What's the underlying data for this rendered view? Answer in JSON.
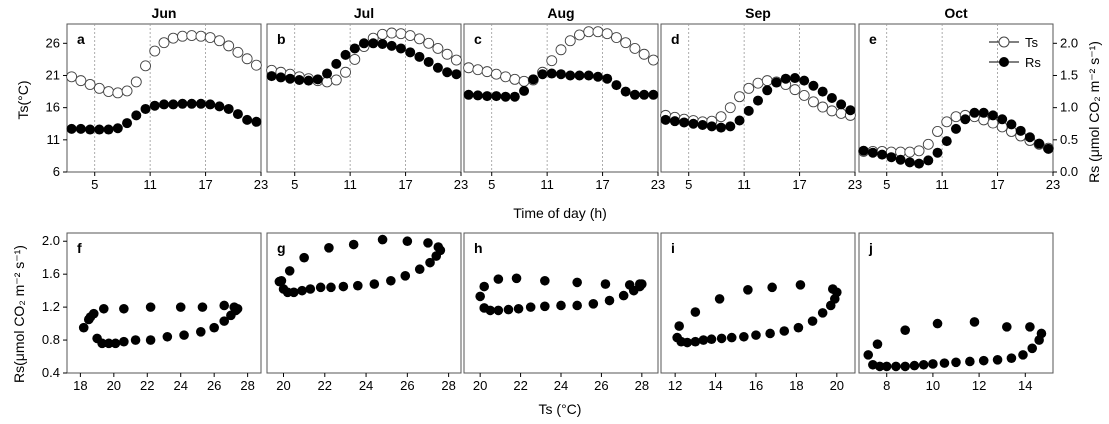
{
  "figure": {
    "xlabel_top": "Time of day (h)",
    "xlabel_bottom": "Ts (°C)",
    "ylabel_top_left": "Ts(°C)",
    "ylabel_top_right": "Rs (μmol CO₂ m⁻² s⁻¹)",
    "ylabel_bottom_left": "Rs(μmol CO₂ m⁻² s⁻¹)",
    "legend": {
      "ts": "Ts",
      "rs": "Rs",
      "placement": "top-right of panel e"
    }
  },
  "chart_data": [
    {
      "type": "scatter",
      "panel": "a",
      "title": "Jun",
      "x_ticks": [
        5,
        11,
        17,
        23
      ],
      "xlim": [
        2,
        23
      ],
      "ts_ticks": [
        6,
        11,
        16,
        21,
        26
      ],
      "ts_lim": [
        6,
        29
      ],
      "rs_lim": [
        0,
        2.3
      ],
      "vlines": [
        5,
        11,
        17
      ],
      "series": [
        {
          "name": "Ts",
          "marker": "open-circle",
          "x": [
            2.5,
            3.5,
            4.5,
            5.5,
            6.5,
            7.5,
            8.5,
            9.5,
            10.5,
            11.5,
            12.5,
            13.5,
            14.5,
            15.5,
            16.5,
            17.5,
            18.5,
            19.5,
            20.5,
            21.5,
            22.5
          ],
          "values": [
            20.8,
            20.2,
            19.6,
            19.0,
            18.5,
            18.3,
            18.6,
            20.0,
            22.5,
            24.8,
            26.1,
            26.8,
            27.1,
            27.2,
            27.1,
            26.9,
            26.4,
            25.6,
            24.6,
            23.6,
            22.6
          ]
        },
        {
          "name": "Rs",
          "marker": "filled-circle",
          "x": [
            2.5,
            3.5,
            4.5,
            5.5,
            6.5,
            7.5,
            8.5,
            9.5,
            10.5,
            11.5,
            12.5,
            13.5,
            14.5,
            15.5,
            16.5,
            17.5,
            18.5,
            19.5,
            20.5,
            21.5,
            22.5
          ],
          "values": [
            0.67,
            0.67,
            0.66,
            0.66,
            0.66,
            0.68,
            0.76,
            0.88,
            0.98,
            1.03,
            1.05,
            1.05,
            1.06,
            1.06,
            1.06,
            1.05,
            1.02,
            0.98,
            0.9,
            0.81,
            0.78
          ]
        }
      ]
    },
    {
      "type": "scatter",
      "panel": "b",
      "title": "Jul",
      "x_ticks": [
        5,
        11,
        17,
        23
      ],
      "xlim": [
        2,
        23
      ],
      "ts_lim": [
        6,
        29
      ],
      "rs_lim": [
        0,
        2.3
      ],
      "vlines": [
        5,
        11,
        17
      ],
      "series": [
        {
          "name": "Ts",
          "marker": "open-circle",
          "x": [
            2.5,
            3.5,
            4.5,
            5.5,
            6.5,
            7.5,
            8.5,
            9.5,
            10.5,
            11.5,
            12.5,
            13.5,
            14.5,
            15.5,
            16.5,
            17.5,
            18.5,
            19.5,
            20.5,
            21.5,
            22.5
          ],
          "values": [
            21.8,
            21.5,
            21.2,
            20.8,
            20.5,
            20.2,
            20.0,
            20.3,
            21.5,
            23.5,
            25.5,
            26.8,
            27.4,
            27.6,
            27.5,
            27.2,
            26.7,
            26.0,
            25.2,
            24.3,
            23.4
          ]
        },
        {
          "name": "Rs",
          "marker": "filled-circle",
          "x": [
            2.5,
            3.5,
            4.5,
            5.5,
            6.5,
            7.5,
            8.5,
            9.5,
            10.5,
            11.5,
            12.5,
            13.5,
            14.5,
            15.5,
            16.5,
            17.5,
            18.5,
            19.5,
            20.5,
            21.5,
            22.5
          ],
          "values": [
            1.49,
            1.47,
            1.45,
            1.43,
            1.42,
            1.44,
            1.53,
            1.68,
            1.82,
            1.92,
            2.0,
            2.0,
            1.99,
            1.96,
            1.92,
            1.86,
            1.79,
            1.71,
            1.62,
            1.55,
            1.52
          ]
        }
      ]
    },
    {
      "type": "scatter",
      "panel": "c",
      "title": "Aug",
      "x_ticks": [
        5,
        11,
        17,
        23
      ],
      "xlim": [
        2,
        23
      ],
      "ts_lim": [
        6,
        29
      ],
      "rs_lim": [
        0,
        2.3
      ],
      "vlines": [
        5,
        11,
        17
      ],
      "series": [
        {
          "name": "Ts",
          "marker": "open-circle",
          "x": [
            2.5,
            3.5,
            4.5,
            5.5,
            6.5,
            7.5,
            8.5,
            9.5,
            10.5,
            11.5,
            12.5,
            13.5,
            14.5,
            15.5,
            16.5,
            17.5,
            18.5,
            19.5,
            20.5,
            21.5,
            22.5
          ],
          "values": [
            22.2,
            21.9,
            21.6,
            21.2,
            20.8,
            20.4,
            20.1,
            20.3,
            21.5,
            23.3,
            25.0,
            26.4,
            27.3,
            27.8,
            27.8,
            27.5,
            26.9,
            26.1,
            25.2,
            24.3,
            23.4
          ]
        },
        {
          "name": "Rs",
          "marker": "filled-circle",
          "x": [
            2.5,
            3.5,
            4.5,
            5.5,
            6.5,
            7.5,
            8.5,
            9.5,
            10.5,
            11.5,
            12.5,
            13.5,
            14.5,
            15.5,
            16.5,
            17.5,
            18.5,
            19.5,
            20.5,
            21.5,
            22.5
          ],
          "values": [
            1.2,
            1.19,
            1.18,
            1.18,
            1.17,
            1.17,
            1.26,
            1.44,
            1.52,
            1.53,
            1.52,
            1.5,
            1.5,
            1.5,
            1.48,
            1.45,
            1.35,
            1.25,
            1.2,
            1.2,
            1.2
          ]
        }
      ]
    },
    {
      "type": "scatter",
      "panel": "d",
      "title": "Sep",
      "x_ticks": [
        5,
        11,
        17,
        23
      ],
      "xlim": [
        2,
        23
      ],
      "ts_lim": [
        6,
        29
      ],
      "rs_lim": [
        0,
        2.3
      ],
      "vlines": [
        5,
        11,
        17
      ],
      "series": [
        {
          "name": "Ts",
          "marker": "open-circle",
          "x": [
            2.5,
            3.5,
            4.5,
            5.5,
            6.5,
            7.5,
            8.5,
            9.5,
            10.5,
            11.5,
            12.5,
            13.5,
            14.5,
            15.5,
            16.5,
            17.5,
            18.5,
            19.5,
            20.5,
            21.5,
            22.5
          ],
          "values": [
            14.8,
            14.5,
            14.2,
            14.0,
            13.8,
            13.9,
            14.6,
            16.0,
            17.7,
            19.0,
            19.8,
            20.2,
            20.0,
            19.6,
            18.8,
            17.9,
            16.9,
            16.1,
            15.5,
            15.1,
            14.8
          ]
        },
        {
          "name": "Rs",
          "marker": "filled-circle",
          "x": [
            2.5,
            3.5,
            4.5,
            5.5,
            6.5,
            7.5,
            8.5,
            9.5,
            10.5,
            11.5,
            12.5,
            13.5,
            14.5,
            15.5,
            16.5,
            17.5,
            18.5,
            19.5,
            20.5,
            21.5,
            22.5
          ],
          "values": [
            0.81,
            0.79,
            0.77,
            0.75,
            0.73,
            0.71,
            0.69,
            0.71,
            0.8,
            0.95,
            1.11,
            1.27,
            1.39,
            1.45,
            1.46,
            1.42,
            1.34,
            1.25,
            1.15,
            1.05,
            0.96
          ]
        }
      ]
    },
    {
      "type": "scatter",
      "panel": "e",
      "title": "Oct",
      "x_ticks": [
        5,
        11,
        17,
        23
      ],
      "xlim": [
        2,
        23
      ],
      "ts_lim": [
        6,
        29
      ],
      "rs_lim": [
        0,
        2.3
      ],
      "vlines": [
        5,
        11,
        17
      ],
      "series": [
        {
          "name": "Ts",
          "marker": "open-circle",
          "x": [
            2.5,
            3.5,
            4.5,
            5.5,
            6.5,
            7.5,
            8.5,
            9.5,
            10.5,
            11.5,
            12.5,
            13.5,
            14.5,
            15.5,
            16.5,
            17.5,
            18.5,
            19.5,
            20.5,
            21.5,
            22.5
          ],
          "values": [
            9.2,
            9.2,
            9.2,
            9.1,
            9.1,
            9.1,
            9.3,
            10.3,
            12.3,
            13.8,
            14.6,
            14.8,
            14.6,
            14.1,
            13.6,
            13.0,
            12.3,
            11.6,
            10.9,
            10.3,
            9.7
          ]
        },
        {
          "name": "Rs",
          "marker": "filled-circle",
          "x": [
            2.5,
            3.5,
            4.5,
            5.5,
            6.5,
            7.5,
            8.5,
            9.5,
            10.5,
            11.5,
            12.5,
            13.5,
            14.5,
            15.5,
            16.5,
            17.5,
            18.5,
            19.5,
            20.5,
            21.5,
            22.5
          ],
          "values": [
            0.33,
            0.3,
            0.27,
            0.23,
            0.19,
            0.15,
            0.13,
            0.18,
            0.3,
            0.48,
            0.67,
            0.82,
            0.92,
            0.92,
            0.88,
            0.82,
            0.74,
            0.64,
            0.54,
            0.44,
            0.36
          ]
        }
      ]
    },
    {
      "type": "scatter",
      "panel": "f",
      "x_ticks": [
        18,
        20,
        22,
        24,
        26,
        28
      ],
      "xlim": [
        17.2,
        28.8
      ],
      "y_ticks": [
        0.4,
        0.8,
        1.2,
        1.6,
        2.0
      ],
      "ylim": [
        0.4,
        2.1
      ],
      "series": [
        {
          "name": "Rs",
          "x": [
            18.2,
            18.5,
            18.8,
            19.0,
            19.3,
            19.7,
            20.1,
            20.6,
            21.3,
            22.2,
            23.2,
            24.2,
            25.2,
            26.0,
            26.6,
            27.0,
            27.3,
            27.4,
            27.2,
            26.6,
            25.3,
            24.0,
            22.2,
            20.6,
            19.4,
            18.6
          ],
          "values": [
            0.95,
            1.05,
            1.12,
            0.82,
            0.76,
            0.76,
            0.76,
            0.78,
            0.8,
            0.8,
            0.84,
            0.86,
            0.9,
            0.95,
            1.03,
            1.1,
            1.16,
            1.18,
            1.2,
            1.22,
            1.2,
            1.2,
            1.2,
            1.18,
            1.18,
            1.08
          ]
        }
      ]
    },
    {
      "type": "scatter",
      "panel": "g",
      "x_ticks": [
        20,
        22,
        24,
        26,
        28
      ],
      "xlim": [
        19.2,
        28.6
      ],
      "ylim": [
        0.4,
        2.1
      ],
      "series": [
        {
          "name": "Rs",
          "x": [
            19.8,
            20.0,
            20.2,
            20.5,
            20.9,
            21.3,
            21.8,
            22.3,
            22.9,
            23.6,
            24.4,
            25.2,
            25.9,
            26.6,
            27.1,
            27.4,
            27.6,
            27.5,
            27.0,
            26.0,
            24.8,
            23.4,
            22.2,
            21.0,
            20.3,
            19.9
          ],
          "values": [
            1.51,
            1.42,
            1.38,
            1.38,
            1.4,
            1.42,
            1.44,
            1.44,
            1.45,
            1.46,
            1.48,
            1.52,
            1.58,
            1.66,
            1.74,
            1.82,
            1.89,
            1.93,
            1.98,
            2.0,
            2.02,
            1.96,
            1.92,
            1.8,
            1.64,
            1.52
          ]
        }
      ]
    },
    {
      "type": "scatter",
      "panel": "h",
      "x_ticks": [
        20,
        22,
        24,
        26,
        28
      ],
      "xlim": [
        19.2,
        28.8
      ],
      "ylim": [
        0.4,
        2.1
      ],
      "series": [
        {
          "name": "Rs",
          "x": [
            20.0,
            20.2,
            20.5,
            20.9,
            21.4,
            21.9,
            22.5,
            23.2,
            24.0,
            24.8,
            25.6,
            26.4,
            27.1,
            27.6,
            27.9,
            28.0,
            27.9,
            27.4,
            26.2,
            24.8,
            23.2,
            21.8,
            20.9,
            20.2
          ],
          "values": [
            1.33,
            1.19,
            1.16,
            1.16,
            1.17,
            1.18,
            1.2,
            1.21,
            1.22,
            1.22,
            1.24,
            1.28,
            1.34,
            1.4,
            1.45,
            1.48,
            1.48,
            1.47,
            1.48,
            1.5,
            1.52,
            1.55,
            1.54,
            1.45
          ]
        }
      ]
    },
    {
      "type": "scatter",
      "panel": "i",
      "x_ticks": [
        12,
        14,
        16,
        18,
        20
      ],
      "xlim": [
        11.3,
        20.9
      ],
      "ylim": [
        0.4,
        2.1
      ],
      "series": [
        {
          "name": "Rs",
          "x": [
            12.1,
            12.3,
            12.6,
            13.0,
            13.4,
            13.8,
            14.3,
            14.8,
            15.4,
            16.0,
            16.7,
            17.4,
            18.1,
            18.8,
            19.3,
            19.7,
            19.9,
            20.0,
            19.8,
            18.2,
            16.8,
            15.6,
            14.2,
            13.0,
            12.2
          ],
          "values": [
            0.83,
            0.78,
            0.77,
            0.78,
            0.8,
            0.81,
            0.82,
            0.83,
            0.84,
            0.86,
            0.88,
            0.91,
            0.95,
            1.03,
            1.13,
            1.22,
            1.3,
            1.38,
            1.42,
            1.47,
            1.44,
            1.41,
            1.3,
            1.14,
            0.97
          ]
        }
      ]
    },
    {
      "type": "scatter",
      "panel": "j",
      "x_ticks": [
        8,
        10,
        12,
        14
      ],
      "xlim": [
        6.8,
        15.2
      ],
      "ylim": [
        0.4,
        2.1
      ],
      "series": [
        {
          "name": "Rs",
          "x": [
            7.2,
            7.4,
            7.7,
            8.0,
            8.4,
            8.8,
            9.2,
            9.6,
            10.0,
            10.5,
            11.0,
            11.6,
            12.2,
            12.8,
            13.4,
            13.9,
            14.3,
            14.6,
            14.7,
            14.2,
            13.2,
            11.8,
            10.2,
            8.8,
            7.6
          ],
          "values": [
            0.62,
            0.5,
            0.48,
            0.48,
            0.48,
            0.48,
            0.49,
            0.5,
            0.51,
            0.52,
            0.53,
            0.54,
            0.55,
            0.56,
            0.58,
            0.62,
            0.7,
            0.8,
            0.88,
            0.96,
            0.96,
            1.02,
            1.0,
            0.92,
            0.75
          ]
        }
      ]
    }
  ]
}
